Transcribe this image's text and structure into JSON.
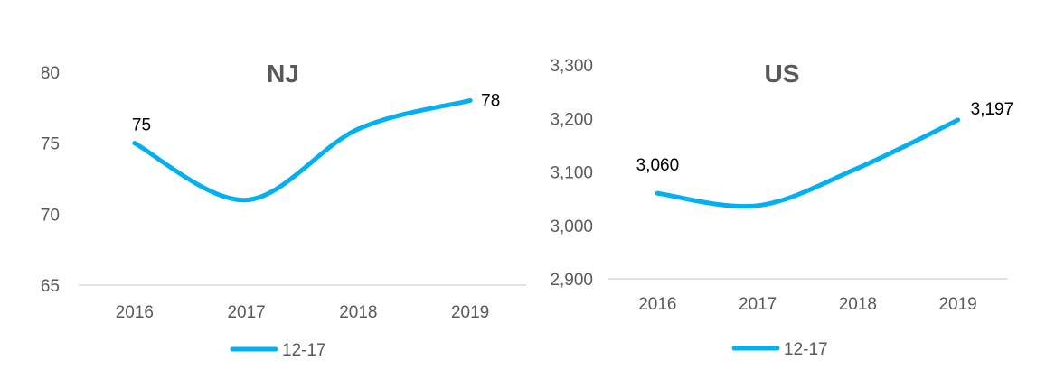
{
  "chart_data": [
    {
      "type": "line",
      "title": "NJ",
      "categories": [
        "2016",
        "2017",
        "2018",
        "2019"
      ],
      "series": [
        {
          "name": "12-17",
          "values": [
            75,
            71,
            76,
            78
          ]
        }
      ],
      "data_labels": [
        {
          "index": 0,
          "text": "75"
        },
        {
          "index": 3,
          "text": "78"
        }
      ],
      "y_ticks": [
        "65",
        "70",
        "75",
        "80"
      ],
      "ylim": [
        65,
        80
      ],
      "legend": "bottom",
      "color": "#00B0F0"
    },
    {
      "type": "line",
      "title": "US",
      "categories": [
        "2016",
        "2017",
        "2018",
        "2019"
      ],
      "series": [
        {
          "name": "12-17",
          "values": [
            3060,
            3037,
            3107,
            3197
          ]
        }
      ],
      "data_labels": [
        {
          "index": 0,
          "text": "3,060"
        },
        {
          "index": 3,
          "text": "3,197"
        }
      ],
      "y_ticks": [
        "2,900",
        "3,000",
        "3,100",
        "3,200",
        "3,300"
      ],
      "ylim": [
        2900,
        3300
      ],
      "legend": "bottom",
      "color": "#00B0F0"
    }
  ]
}
